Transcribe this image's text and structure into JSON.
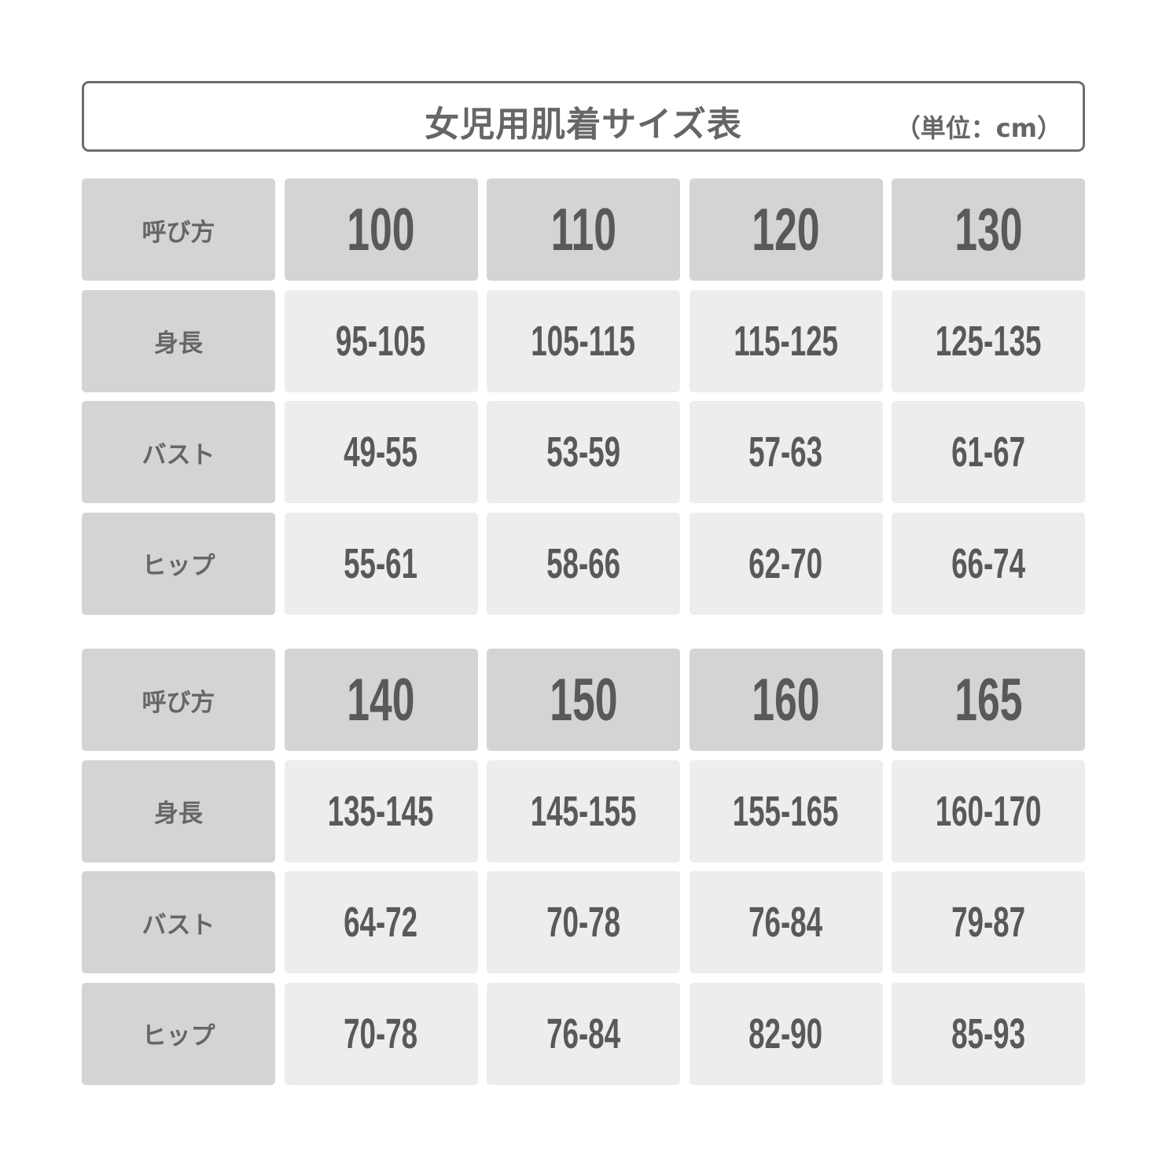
{
  "title": "女児用肌着サイズ表",
  "unit": "（単位：cm）",
  "colors": {
    "header_bg": "#d4d4d6",
    "data_bg": "#ededed",
    "text": "#58595b",
    "border": "#6d6d6d"
  },
  "tables": [
    {
      "header_label": "呼び方",
      "sizes": [
        "100",
        "110",
        "120",
        "130"
      ],
      "rows": [
        {
          "label": "身長",
          "values": [
            "95-105",
            "105-115",
            "115-125",
            "125-135"
          ]
        },
        {
          "label": "バスト",
          "values": [
            "49-55",
            "53-59",
            "57-63",
            "61-67"
          ]
        },
        {
          "label": "ヒップ",
          "values": [
            "55-61",
            "58-66",
            "62-70",
            "66-74"
          ]
        }
      ]
    },
    {
      "header_label": "呼び方",
      "sizes": [
        "140",
        "150",
        "160",
        "165"
      ],
      "rows": [
        {
          "label": "身長",
          "values": [
            "135-145",
            "145-155",
            "155-165",
            "160-170"
          ]
        },
        {
          "label": "バスト",
          "values": [
            "64-72",
            "70-78",
            "76-84",
            "79-87"
          ]
        },
        {
          "label": "ヒップ",
          "values": [
            "70-78",
            "76-84",
            "82-90",
            "85-93"
          ]
        }
      ]
    }
  ]
}
